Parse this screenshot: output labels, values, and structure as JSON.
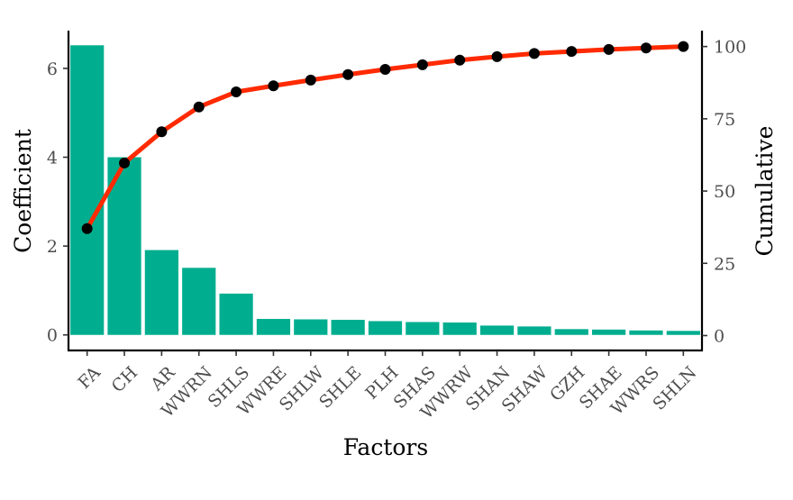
{
  "chart_data": {
    "type": "bar",
    "xlabel": "Factors",
    "ylabel": "Coefficient",
    "y2label": "Cumulative",
    "categories": [
      "FA",
      "CH",
      "AR",
      "WWRN",
      "SHLS",
      "WWRE",
      "SHLW",
      "SHLE",
      "PLH",
      "SHAS",
      "WWRW",
      "SHAN",
      "SHAW",
      "GZH",
      "SHAE",
      "WWRS",
      "SHLN"
    ],
    "series": [
      {
        "type": "bar",
        "axis": "left",
        "values": [
          6.52,
          4.0,
          1.91,
          1.51,
          0.93,
          0.36,
          0.35,
          0.34,
          0.31,
          0.29,
          0.28,
          0.21,
          0.19,
          0.13,
          0.12,
          0.1,
          0.09
        ],
        "color": "#00AE8F"
      },
      {
        "type": "line",
        "axis": "right",
        "values": [
          37.0,
          59.7,
          70.5,
          79.1,
          84.3,
          86.4,
          88.4,
          90.3,
          92.1,
          93.7,
          95.3,
          96.5,
          97.6,
          98.3,
          99.0,
          99.5,
          100.0
        ],
        "color": "#FF2A00",
        "marker_color": "#000000"
      }
    ],
    "ylim": [
      -0.35,
      6.85
    ],
    "y2lim": [
      -5.15,
      105.5
    ],
    "yticks": [
      "0",
      "2",
      "4",
      "6"
    ],
    "y2ticks": [
      "0",
      "25",
      "50",
      "75",
      "100"
    ],
    "grid": false,
    "legend": "none"
  }
}
